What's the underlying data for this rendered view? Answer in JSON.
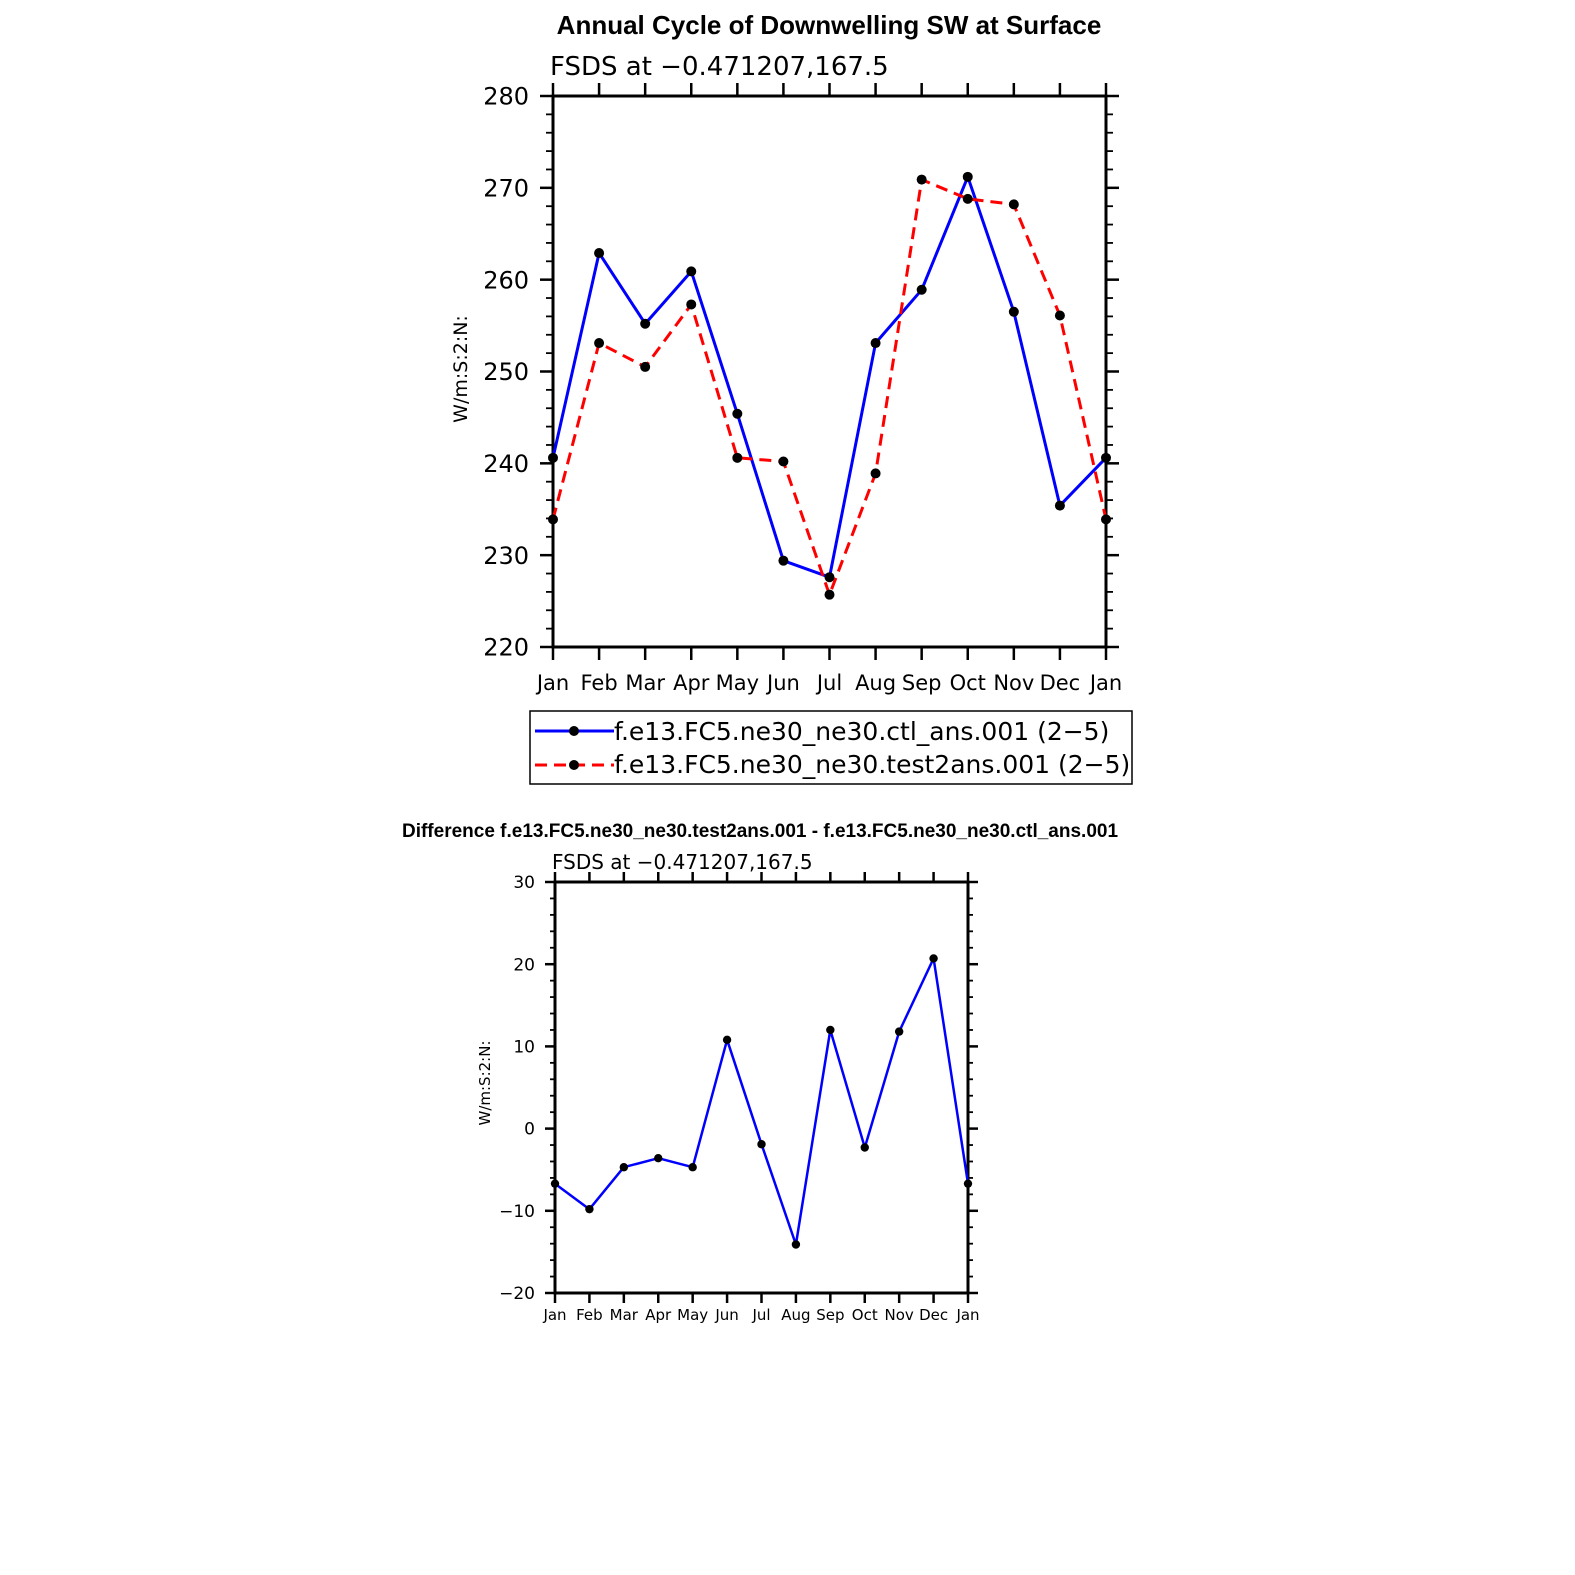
{
  "chart_data": [
    {
      "type": "line",
      "title": "Annual Cycle of Downwelling SW at Surface",
      "subtitle": "FSDS at −0.471207,167.5",
      "ylabel": "W/m:S:2:N:",
      "ylim": [
        220,
        280
      ],
      "yticks": [
        "220",
        "230",
        "240",
        "250",
        "260",
        "270",
        "280"
      ],
      "categories": [
        "Jan",
        "Feb",
        "Mar",
        "Apr",
        "May",
        "Jun",
        "Jul",
        "Aug",
        "Sep",
        "Oct",
        "Nov",
        "Dec",
        "Jan"
      ],
      "series": [
        {
          "name": "f.e13.FC5.ne30_ne30.ctl_ans.001 (2−5)",
          "color": "#0000ff",
          "dash": "solid",
          "values": [
            240.6,
            262.9,
            255.2,
            260.9,
            245.4,
            229.4,
            227.6,
            253.1,
            258.9,
            271.2,
            256.5,
            235.4,
            240.6
          ]
        },
        {
          "name": "f.e13.FC5.ne30_ne30.test2ans.001 (2−5)",
          "color": "#ff0000",
          "dash": "dashed",
          "values": [
            233.9,
            253.1,
            250.5,
            257.3,
            240.6,
            240.2,
            225.7,
            238.9,
            270.9,
            268.8,
            268.2,
            256.1,
            233.9
          ]
        }
      ]
    },
    {
      "type": "line",
      "title": "Difference f.e13.FC5.ne30_ne30.test2ans.001 - f.e13.FC5.ne30_ne30.ctl_ans.001",
      "subtitle": "FSDS at −0.471207,167.5",
      "ylabel": "W/m:S:2:N:",
      "ylim": [
        -20,
        30
      ],
      "yticks": [
        "−20",
        "−10",
        "0",
        "10",
        "20",
        "30"
      ],
      "categories": [
        "Jan",
        "Feb",
        "Mar",
        "Apr",
        "May",
        "Jun",
        "Jul",
        "Aug",
        "Sep",
        "Oct",
        "Nov",
        "Dec",
        "Jan"
      ],
      "series": [
        {
          "name": "difference",
          "color": "#0000ff",
          "dash": "solid",
          "values": [
            -6.7,
            -9.8,
            -4.7,
            -3.6,
            -4.7,
            10.8,
            -1.9,
            -14.1,
            12.0,
            -2.3,
            11.8,
            20.7,
            -6.7
          ]
        }
      ]
    }
  ]
}
